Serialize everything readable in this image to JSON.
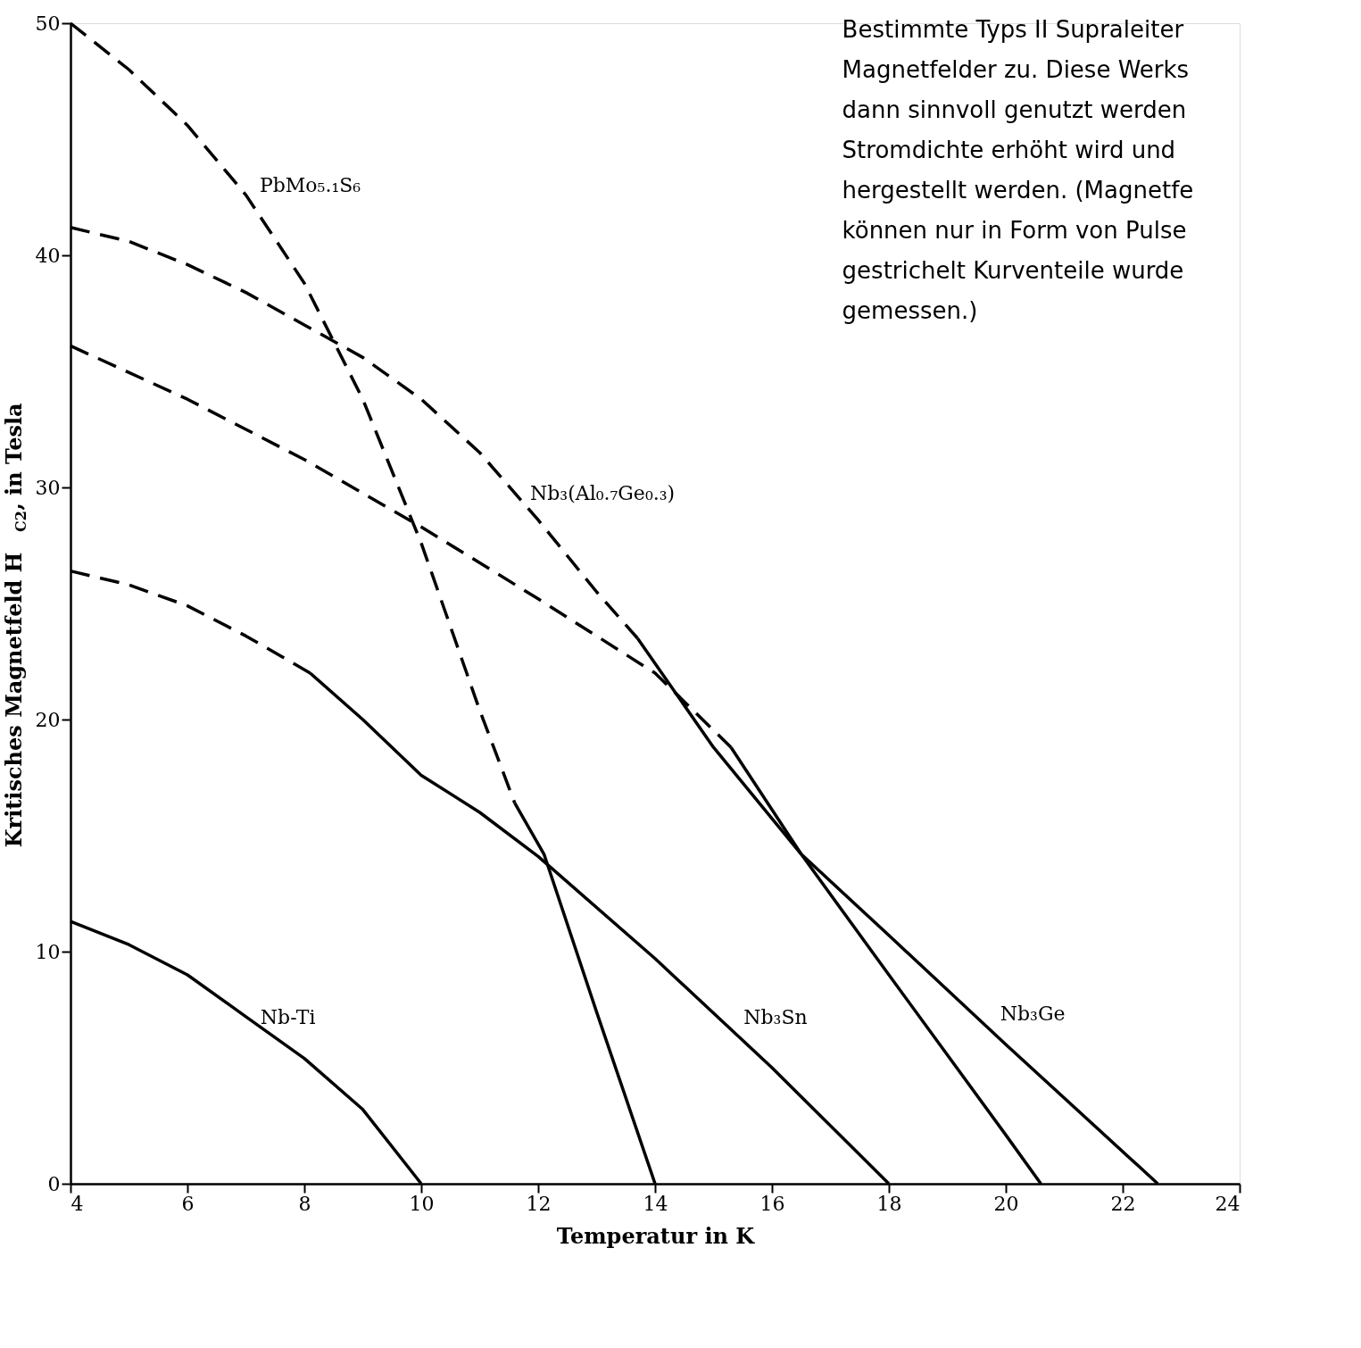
{
  "chart_data": {
    "type": "line",
    "xlabel": "Temperatur in K",
    "ylabel": "Kritisches Magnetfeld H$_{C2}$,  in Tesla",
    "xlim": [
      4,
      24
    ],
    "xticks": [
      4,
      6,
      8,
      10,
      12,
      14,
      16,
      18,
      20,
      22,
      24
    ],
    "ylim": [
      0,
      50
    ],
    "yticks": [
      0,
      10,
      20,
      30,
      40,
      50
    ],
    "grid": false,
    "marker": "none",
    "series": [
      {
        "color": "#000000",
        "line_style": "solid",
        "x": [
          4,
          5,
          6,
          7,
          8,
          9,
          10
        ],
        "values": [
          11.3,
          10.3,
          9.0,
          7.2,
          5.4,
          3.2,
          0
        ]
      },
      {
        "color": "#000000",
        "line_style": "dashed",
        "x": [
          4,
          5,
          6,
          7,
          8.1
        ],
        "values": [
          26.4,
          25.8,
          24.9,
          23.6,
          22.0
        ]
      },
      {
        "color": "#000000",
        "line_style": "solid",
        "x": [
          8.1,
          9,
          10,
          11,
          12,
          14,
          16,
          18
        ],
        "values": [
          22.0,
          20.0,
          17.6,
          16.0,
          14.1,
          9.7,
          5.0,
          0
        ]
      },
      {
        "color": "#000000",
        "line_style": "dashed",
        "x": [
          4,
          6,
          8,
          10,
          12,
          14,
          15.3
        ],
        "values": [
          36.1,
          33.8,
          31.2,
          28.3,
          25.2,
          22.0,
          18.8
        ]
      },
      {
        "color": "#000000",
        "line_style": "solid",
        "x": [
          15.3,
          16.5,
          18,
          20,
          22.6
        ],
        "values": [
          18.8,
          14.2,
          10.7,
          6.0,
          0
        ]
      },
      {
        "color": "#000000",
        "line_style": "dashed",
        "x": [
          4,
          5,
          6,
          7,
          8,
          9,
          10,
          11,
          12,
          13,
          13.7
        ],
        "values": [
          41.2,
          40.6,
          39.6,
          38.4,
          37.0,
          35.6,
          33.8,
          31.5,
          28.6,
          25.5,
          23.5
        ]
      },
      {
        "color": "#000000",
        "line_style": "solid",
        "x": [
          13.7,
          15,
          16.5,
          18,
          20,
          20.6
        ],
        "values": [
          23.5,
          18.8,
          14.2,
          9.0,
          2.1,
          0
        ]
      },
      {
        "color": "#000000",
        "line_style": "dashed",
        "x": [
          4,
          5,
          6,
          7,
          8,
          9,
          10,
          11,
          11.6
        ],
        "values": [
          50,
          48,
          45.6,
          42.6,
          38.8,
          33.8,
          27.6,
          20.4,
          16.4
        ]
      },
      {
        "color": "#000000",
        "line_style": "solid",
        "x": [
          11.6,
          12.1,
          13,
          14
        ],
        "values": [
          16.4,
          14.2,
          7.4,
          0
        ]
      }
    ],
    "annotations": [
      "Nb-Ti",
      "Nb₃Sn",
      "Nb₃Ge",
      "Nb₃(Al₀.₇Ge₀.₃)",
      "PbMo₅.₁S₆",
      "Bestimmte Typs II Supraleiter\nMagnetfelder zu. Diese Werks\ndann sinnvoll genutzt werden\nStromdichte erhöht wird und\nhergestellt werden. (Magnetfe\nkönnen nur in Form von Pulse\ngestrichelt Kurventeile wurde\ngemessen.)"
    ]
  }
}
